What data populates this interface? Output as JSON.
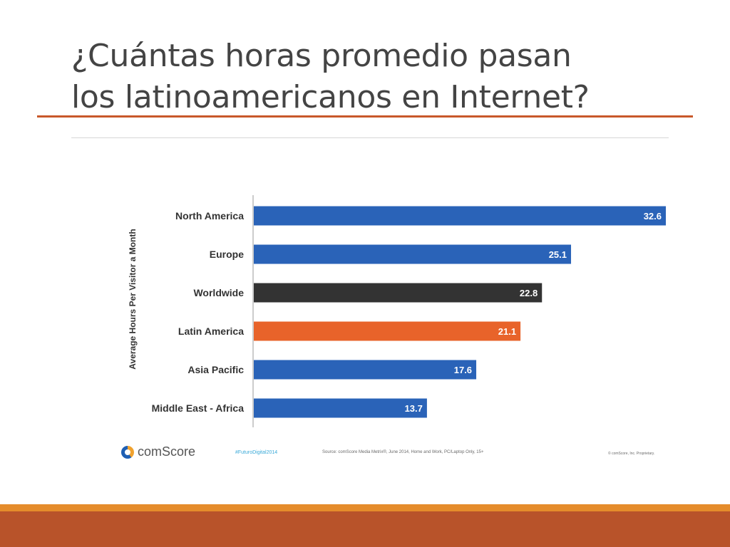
{
  "slide": {
    "title_line1": "¿Cuántas horas promedio pasan",
    "title_line2": "los latinoamericanos en Internet?"
  },
  "chart_data": {
    "type": "bar",
    "orientation": "horizontal",
    "ylabel": "Average Hours Per Visitor a Month",
    "categories": [
      "North America",
      "Europe",
      "Worldwide",
      "Latin America",
      "Asia Pacific",
      "Middle East - Africa"
    ],
    "values": [
      32.6,
      25.1,
      22.8,
      21.1,
      17.6,
      13.7
    ],
    "value_labels": [
      "32.6",
      "25.1",
      "22.8",
      "21.1",
      "17.6",
      "13.7"
    ],
    "bar_colors": [
      "#2a63b8",
      "#2a63b8",
      "#333333",
      "#e8632a",
      "#2a63b8",
      "#2a63b8"
    ],
    "xlim": [
      0,
      32.6
    ],
    "grid": false
  },
  "footer": {
    "logo_text": "comScore",
    "hashtag": "#FuturoDigital2014",
    "source": "Source: comScore Media Metrix®, June 2014, Home and Work, PC/Laptop Only, 15+",
    "copyright": "© comScore, Inc. Proprietary."
  },
  "colors": {
    "accent_orange": "#c8582a",
    "bar_blue": "#2a63b8",
    "bar_dark": "#333333",
    "bar_orange": "#e8632a",
    "bottom_light": "#e58c2b",
    "bottom_dark": "#b8532a"
  }
}
